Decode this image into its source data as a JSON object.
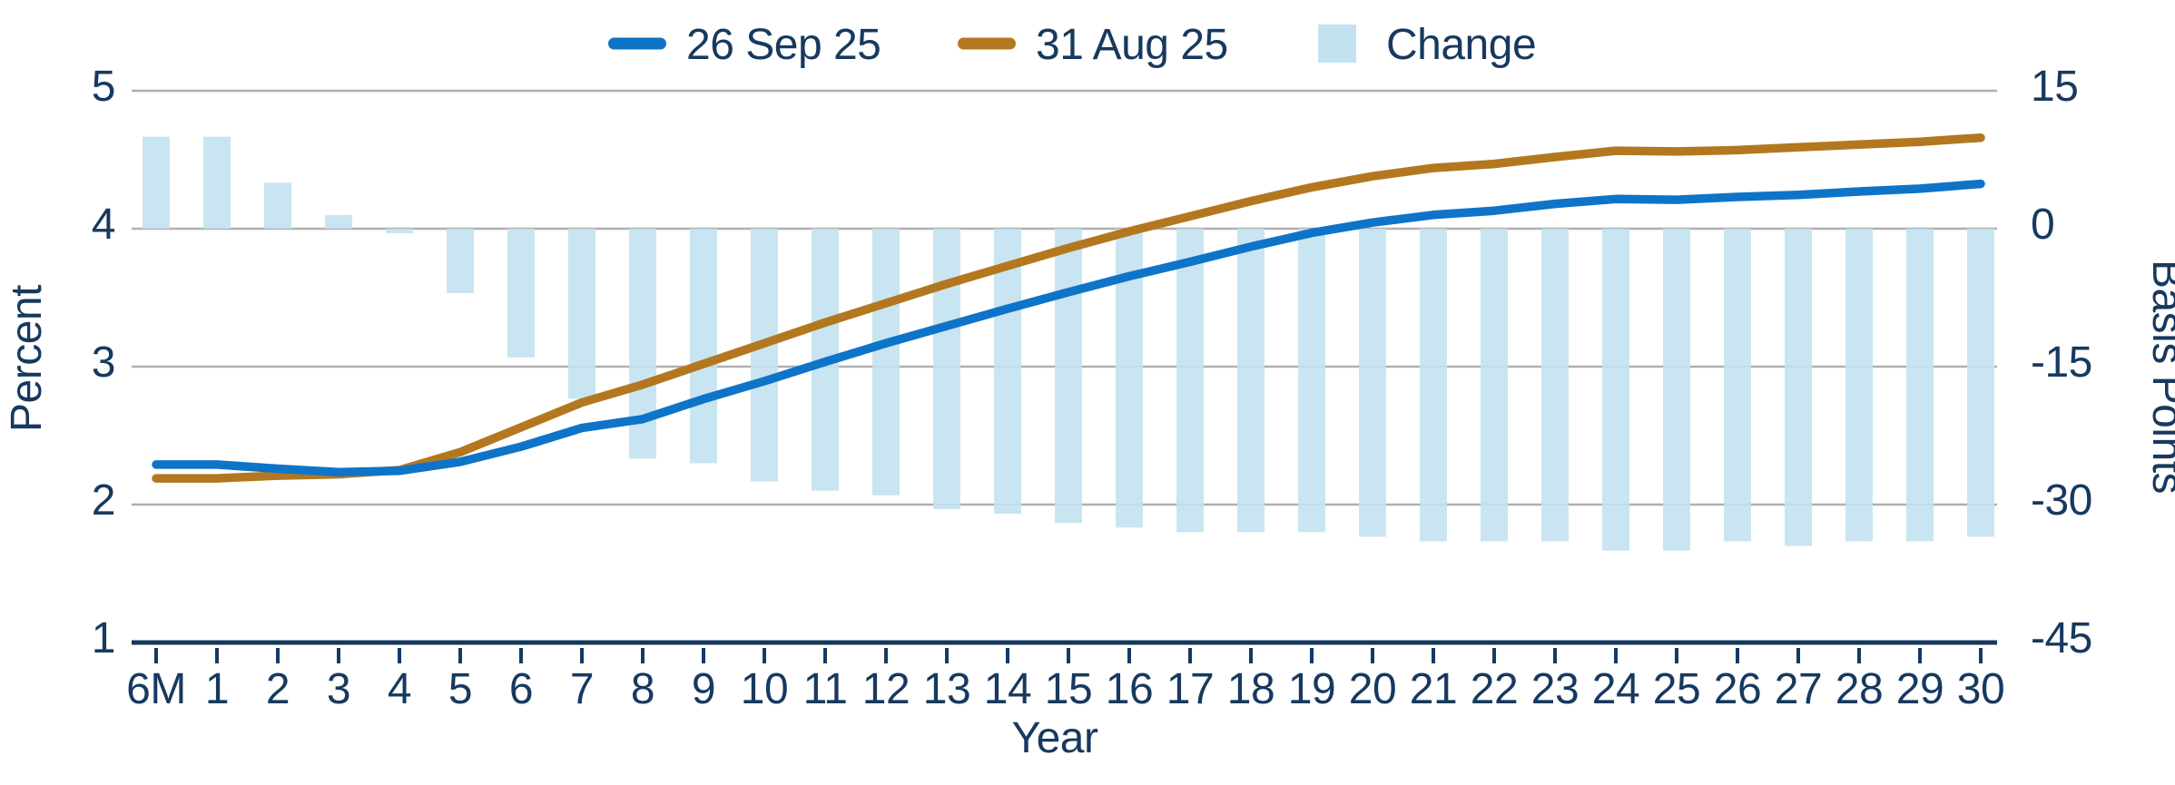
{
  "chart_data": {
    "type": "combo",
    "categories": [
      "6M",
      "1",
      "2",
      "3",
      "4",
      "5",
      "6",
      "7",
      "8",
      "9",
      "10",
      "11",
      "12",
      "13",
      "14",
      "15",
      "16",
      "17",
      "18",
      "19",
      "20",
      "21",
      "22",
      "23",
      "24",
      "25",
      "26",
      "27",
      "28",
      "29",
      "30"
    ],
    "x_axis_label": "Year",
    "left_axis": {
      "title": "Percent",
      "ticks": [
        5,
        4,
        3,
        2,
        1
      ],
      "range": [
        1,
        5
      ]
    },
    "right_axis": {
      "title": "Basis Points",
      "ticks": [
        15,
        0,
        -15,
        -30,
        -45
      ],
      "range": [
        -45,
        15
      ]
    },
    "grid": true,
    "legend_position": "top",
    "series": [
      {
        "name": "26 Sep 25",
        "type": "line",
        "axis": "left",
        "unit": "percent",
        "color": "#0E74C8",
        "values": [
          2.29,
          2.29,
          2.26,
          2.235,
          2.245,
          2.31,
          2.42,
          2.555,
          2.62,
          2.765,
          2.895,
          3.035,
          3.17,
          3.295,
          3.42,
          3.54,
          3.655,
          3.76,
          3.87,
          3.97,
          4.045,
          4.1,
          4.13,
          4.18,
          4.215,
          4.21,
          4.23,
          4.245,
          4.27,
          4.29,
          4.325
        ]
      },
      {
        "name": "31 Aug 25",
        "type": "line",
        "axis": "left",
        "unit": "percent",
        "color": "#B3781F",
        "values": [
          2.19,
          2.19,
          2.21,
          2.22,
          2.25,
          2.38,
          2.56,
          2.74,
          2.87,
          3.02,
          3.17,
          3.32,
          3.46,
          3.6,
          3.73,
          3.86,
          3.98,
          4.09,
          4.2,
          4.3,
          4.38,
          4.44,
          4.47,
          4.52,
          4.565,
          4.56,
          4.57,
          4.59,
          4.61,
          4.63,
          4.66
        ]
      },
      {
        "name": "Change",
        "type": "bar",
        "axis": "right",
        "unit": "basis points",
        "color": "#C3E2EF",
        "values": [
          10,
          10,
          5,
          1.5,
          -0.5,
          -7,
          -14,
          -18.5,
          -25,
          -25.5,
          -27.5,
          -28.5,
          -29,
          -30.5,
          -31,
          -32,
          -32.5,
          -33,
          -33,
          -33,
          -33.5,
          -34,
          -34,
          -34,
          -35,
          -35,
          -34,
          -34.5,
          -34,
          -34,
          -33.5
        ]
      }
    ]
  },
  "colors": {
    "text": "#17395F",
    "grid": "#B0B0B0",
    "axis_line": "#17395F",
    "line_26_sep": "#0E74C8",
    "line_31_aug": "#B3781F",
    "change_bar": "#C3E2EF"
  }
}
